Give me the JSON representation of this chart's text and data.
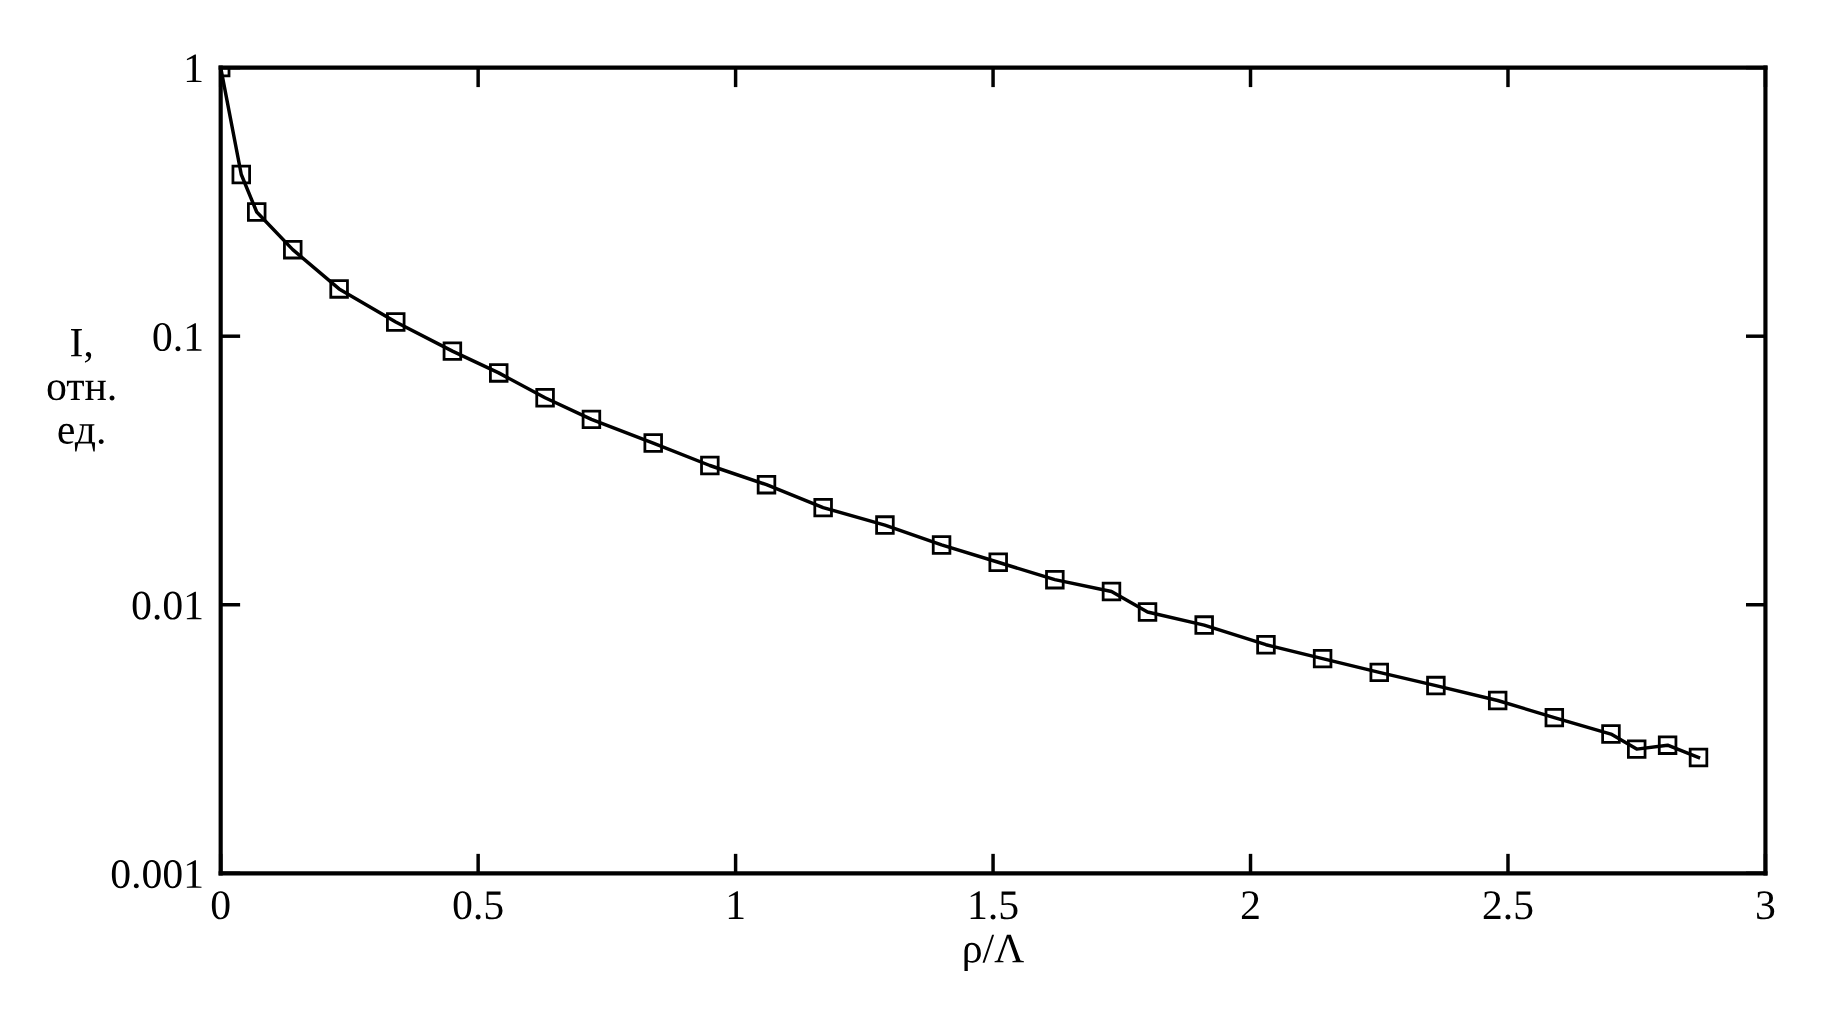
{
  "chart_data": {
    "type": "line",
    "xlabel": "ρ/Λ",
    "ylabel": "I,\nотн.\nед.",
    "x": [
      0,
      0.04,
      0.07,
      0.14,
      0.23,
      0.34,
      0.45,
      0.54,
      0.63,
      0.72,
      0.84,
      0.95,
      1.06,
      1.17,
      1.29,
      1.4,
      1.51,
      1.62,
      1.73,
      1.8,
      1.91,
      2.03,
      2.14,
      2.25,
      2.36,
      2.48,
      2.59,
      2.7,
      2.75,
      2.81,
      2.87
    ],
    "values": [
      1,
      0.4,
      0.29,
      0.21,
      0.15,
      0.113,
      0.088,
      0.073,
      0.059,
      0.049,
      0.04,
      0.033,
      0.028,
      0.023,
      0.0198,
      0.0167,
      0.0144,
      0.0124,
      0.0112,
      0.0094,
      0.0084,
      0.0071,
      0.0063,
      0.0056,
      0.005,
      0.0044,
      0.0038,
      0.0033,
      0.0029,
      0.003,
      0.0027
    ],
    "color": "#000000",
    "marker": "square",
    "line_style": "solid",
    "log": "y",
    "grid": false,
    "xlim": [
      0,
      3
    ],
    "xticks": [
      0,
      0.5,
      1,
      1.5,
      2,
      2.5,
      3
    ],
    "ylim": [
      0.001,
      1
    ],
    "yticks": [
      {
        "value": 0.001,
        "label": "0.001"
      },
      {
        "value": 0.01,
        "label": "0.01"
      },
      {
        "value": 0.1,
        "label": "0.1"
      },
      {
        "value": 1,
        "label": "1"
      }
    ]
  }
}
